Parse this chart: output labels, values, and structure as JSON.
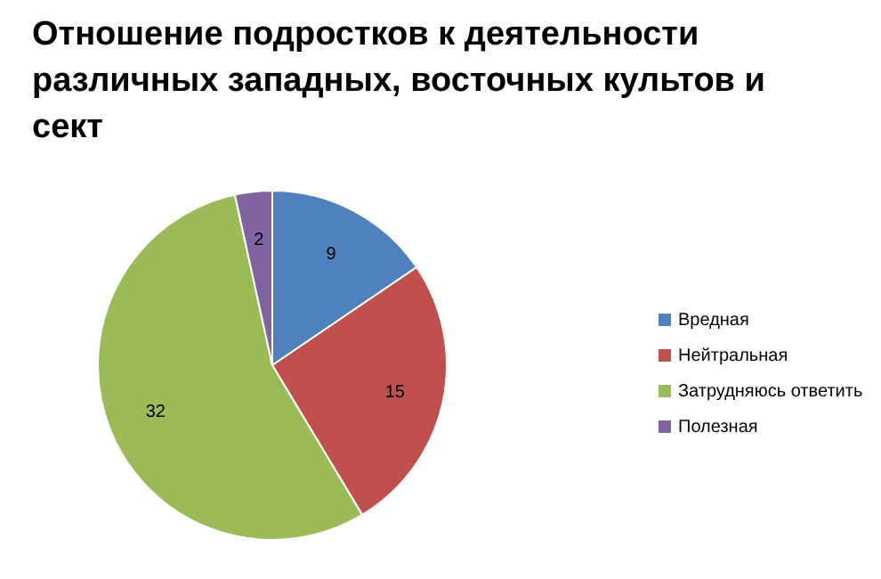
{
  "chart_data": {
    "type": "pie",
    "title": "Отношение подростков к деятельности различных западных, восточных культов и сект",
    "categories": [
      "Вредная",
      "Нейтральная",
      "Затрудняюсь ответить",
      "Полезная"
    ],
    "values": [
      9,
      15,
      32,
      2
    ],
    "colors": [
      "#4f81bd",
      "#c0504d",
      "#9bbb59",
      "#8064a2"
    ],
    "data_labels": true,
    "legend": "right"
  }
}
